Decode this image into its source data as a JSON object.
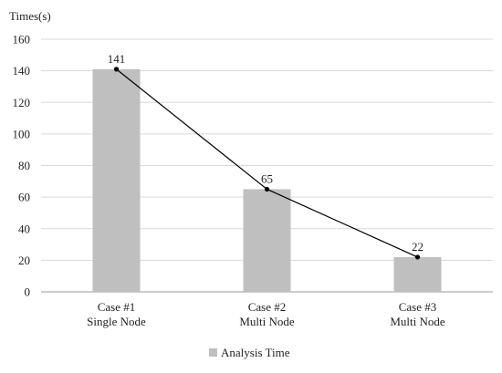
{
  "chart_data": {
    "type": "bar",
    "ylabel": "Times(s)",
    "categories": [
      [
        "Case #1",
        "Single Node"
      ],
      [
        "Case #2",
        "Multi Node"
      ],
      [
        "Case #3",
        "Multi Node"
      ]
    ],
    "series": [
      {
        "name": "Analysis Time",
        "values": [
          141,
          65,
          22
        ]
      }
    ],
    "ylim": [
      0,
      160
    ],
    "yticks": [
      0,
      20,
      40,
      60,
      80,
      100,
      120,
      140,
      160
    ],
    "grid": true,
    "legend": "bottom",
    "overlay_line": true,
    "data_labels": [
      "141",
      "65",
      "22"
    ],
    "colors": {
      "bar": "#bfbfbf",
      "line": "#000000",
      "grid": "#d9d9d9",
      "axis": "#9a9a9a"
    }
  }
}
